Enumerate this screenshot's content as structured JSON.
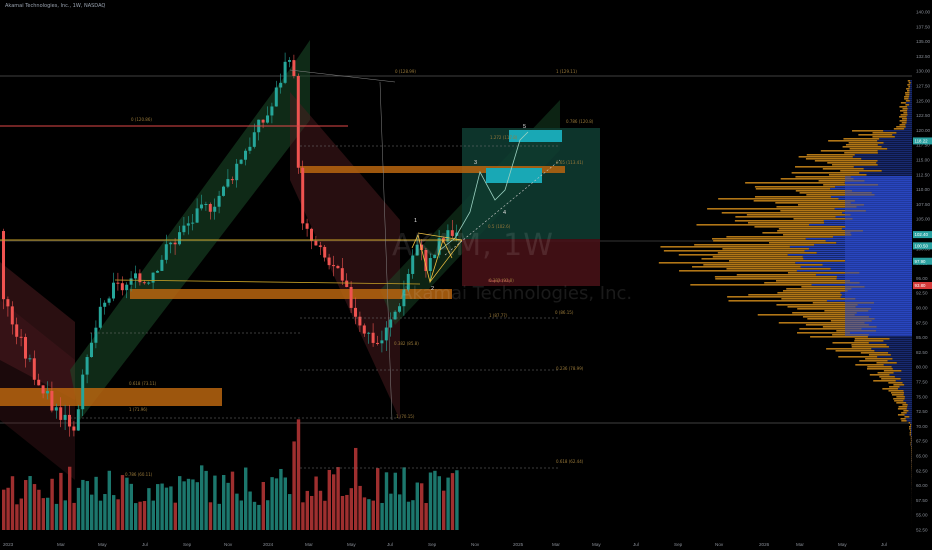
{
  "header": {
    "title": "Akamai Technologies, Inc., 1W, NASDAQ"
  },
  "watermark": {
    "symbol": "AKAM, 1W",
    "name": "Akamai Technologies, Inc."
  },
  "colors": {
    "background": "#000000",
    "bull": "#26a69a",
    "bear": "#ef5350",
    "vol_bull": "#1e7d73",
    "vol_bear": "#a83232",
    "vp_up": "#2a49c7",
    "vp_down": "#d08b1a",
    "channel_green": "#1b4d2a",
    "channel_red": "#4d1b1f",
    "orange_zone": "#b8650f",
    "teal_box": "#19a8b5",
    "long_profit": "#0f3d33",
    "long_loss": "#4a1218",
    "price_tag_red": "#d33a3a",
    "price_tag_teal": "#2aa1a1"
  },
  "chart_data": {
    "type": "candlestick",
    "y_axis": {
      "min": 50,
      "max": 140,
      "ticks": [
        "140.00",
        "137.50",
        "135.00",
        "132.50",
        "130.00",
        "127.50",
        "125.00",
        "122.50",
        "120.00",
        "117.50",
        "115.00",
        "112.50",
        "110.00",
        "107.50",
        "105.00",
        "102.50",
        "100.00",
        "97.50",
        "95.00",
        "92.50",
        "90.00",
        "87.50",
        "85.00",
        "82.50",
        "80.00",
        "77.50",
        "75.00",
        "72.50",
        "70.00",
        "67.50",
        "65.00",
        "62.50",
        "60.00",
        "57.50",
        "55.00",
        "52.50"
      ]
    },
    "x_axis": {
      "ticks": [
        "2023",
        "Mar",
        "May",
        "Jul",
        "Sep",
        "Nov",
        "2024",
        "Mar",
        "May",
        "Jul",
        "Sep",
        "Nov",
        "2025",
        "Mar",
        "May",
        "Jul",
        "Sep",
        "Nov",
        "2026",
        "Mar",
        "May",
        "Jul"
      ]
    },
    "price_tags": [
      {
        "value": 118.22,
        "label": "118.22",
        "color": "teal"
      },
      {
        "value": 102.4,
        "label": "102.40",
        "color": "teal"
      },
      {
        "value": 100.5,
        "label": "100.50",
        "color": "teal"
      },
      {
        "value": 97.9,
        "label": "97.90",
        "color": "teal"
      },
      {
        "value": 93.8,
        "label": "93.80",
        "color": "red"
      }
    ],
    "fib_levels": [
      {
        "label": "0 (128.99)",
        "value": 128.99
      },
      {
        "label": "1 (129.11)",
        "value": 129.11
      },
      {
        "label": "0 (120.86)",
        "value": 120.86
      },
      {
        "label": "0.786 (120.8)",
        "value": 120.8
      },
      {
        "label": "1.272 (117.8)",
        "value": 117.8
      },
      {
        "label": "0.65 (113.41)",
        "value": 113.41
      },
      {
        "label": "0.5 (102.6)",
        "value": 102.6
      },
      {
        "label": "0.382 (93.8)",
        "value": 93.8
      },
      {
        "label": "0 (86.15)",
        "value": 86.15
      },
      {
        "label": "1 (87.77)",
        "value": 87.77
      },
      {
        "label": "0.382 (85.8)",
        "value": 85.8
      },
      {
        "label": "0.236 (78.99)",
        "value": 78.99
      },
      {
        "label": "0.618 (73.11)",
        "value": 73.11
      },
      {
        "label": "1 (71.96)",
        "value": 71.96
      },
      {
        "label": "1 (70.15)",
        "value": 70.15
      },
      {
        "label": "0.618 (62.44)",
        "value": 62.44
      },
      {
        "label": "0.786 (60.11)",
        "value": 60.11
      }
    ],
    "wave_labels": [
      "1",
      "2",
      "3",
      "4",
      "5"
    ],
    "position_label": "Stop (93.83)"
  }
}
